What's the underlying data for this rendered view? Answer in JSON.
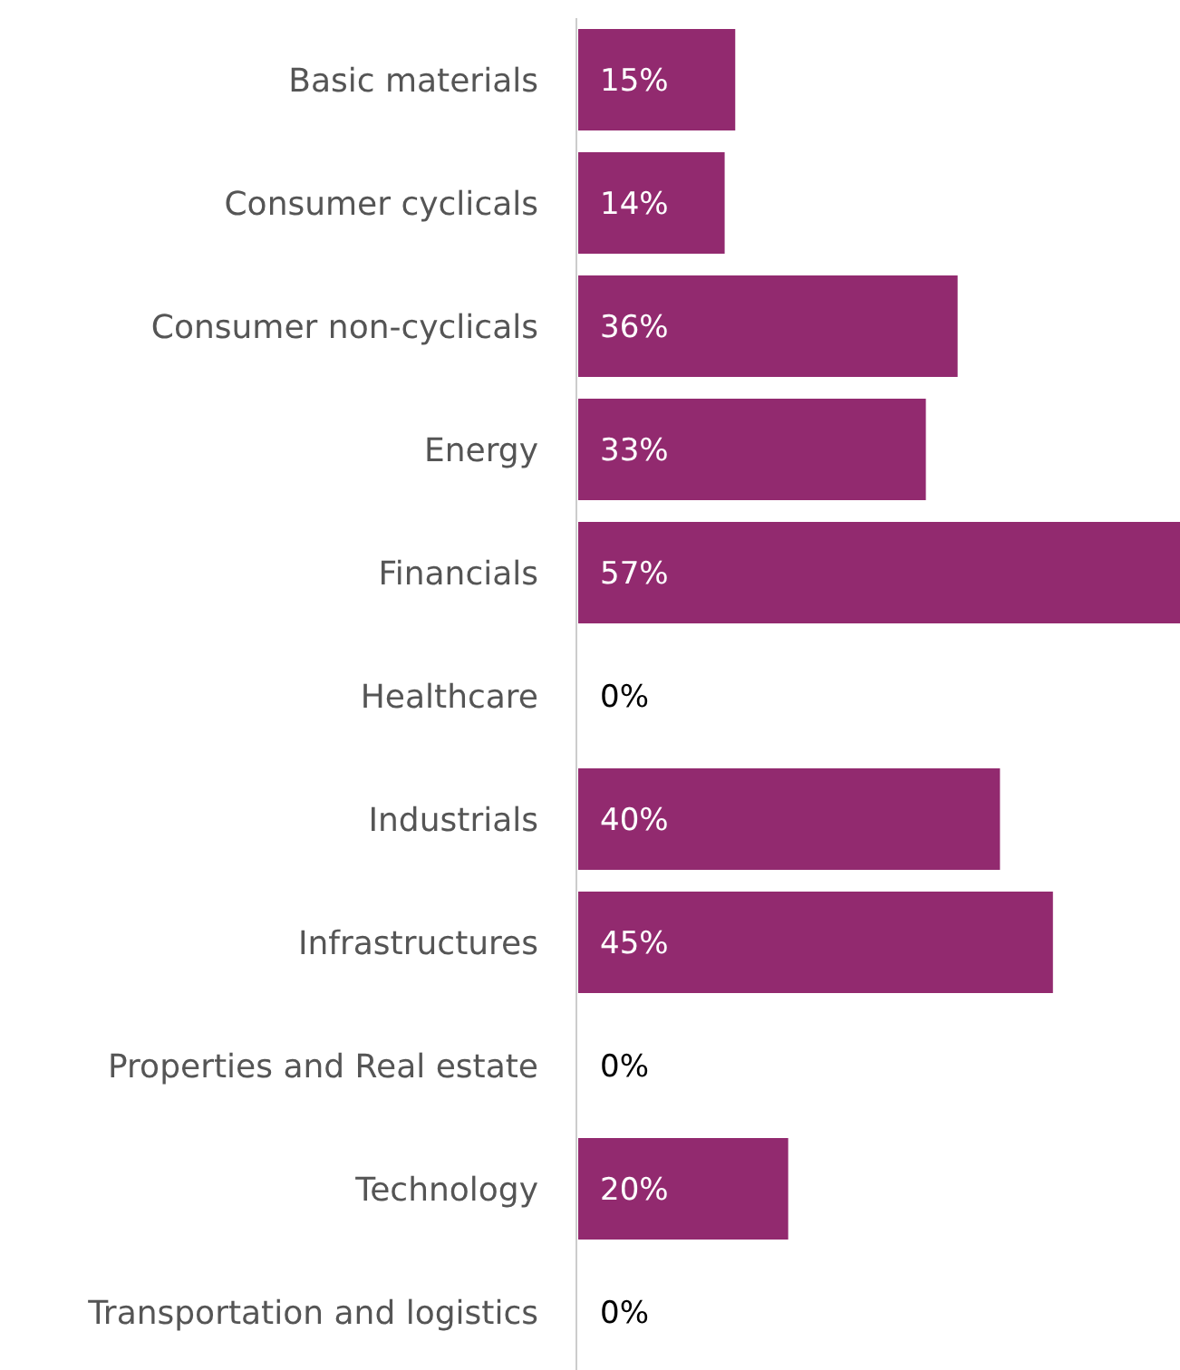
{
  "chart_data": {
    "type": "bar",
    "orientation": "horizontal",
    "categories": [
      "Basic materials",
      "Consumer cyclicals",
      "Consumer non-cyclicals",
      "Energy",
      "Financials",
      "Healthcare",
      "Industrials",
      "Infrastructures",
      "Properties and Real estate",
      "Technology",
      "Transportation and logistics"
    ],
    "values": [
      15,
      14,
      36,
      33,
      57,
      0,
      40,
      45,
      0,
      20,
      0
    ],
    "value_labels": [
      "15%",
      "14%",
      "36%",
      "33%",
      "57%",
      "0%",
      "40%",
      "45%",
      "0%",
      "20%",
      "0%"
    ],
    "color": "#922a6f"
  }
}
